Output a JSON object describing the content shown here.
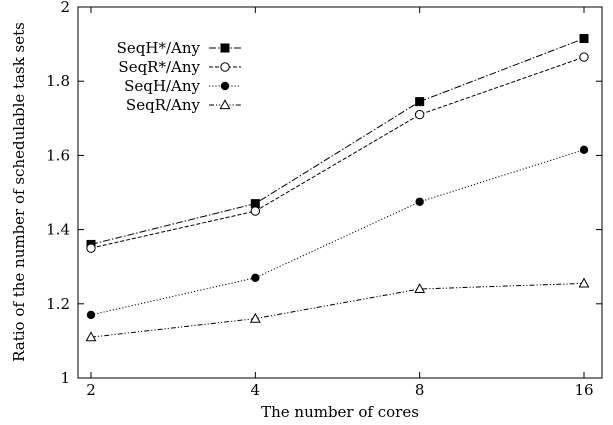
{
  "chart_data": {
    "type": "line",
    "title": "",
    "xlabel": "The number of cores",
    "ylabel": "Ratio of the number of schedulable task sets",
    "x_scale": "log2",
    "categories": [
      "2",
      "4",
      "8",
      "16"
    ],
    "x": [
      2,
      4,
      8,
      16
    ],
    "ylim": [
      1,
      2
    ],
    "yticks": [
      "1",
      "1.2",
      "1.4",
      "1.6",
      "1.8",
      "2"
    ],
    "ytick_values": [
      1,
      1.2,
      1.4,
      1.6,
      1.8,
      2
    ],
    "grid": false,
    "legend_position": "top-left",
    "series": [
      {
        "name": "SeqH*/Any",
        "marker": "filled-square",
        "dash": "dash-dot",
        "values": [
          1.36,
          1.47,
          1.745,
          1.915
        ]
      },
      {
        "name": "SeqR*/Any",
        "marker": "open-circle",
        "dash": "dashed",
        "values": [
          1.35,
          1.45,
          1.71,
          1.865
        ]
      },
      {
        "name": "SeqH/Any",
        "marker": "filled-circle",
        "dash": "dotted",
        "values": [
          1.17,
          1.27,
          1.475,
          1.615
        ]
      },
      {
        "name": "SeqR/Any",
        "marker": "open-triangle",
        "dash": "dash-dot-dot",
        "values": [
          1.11,
          1.16,
          1.24,
          1.255
        ]
      }
    ]
  }
}
